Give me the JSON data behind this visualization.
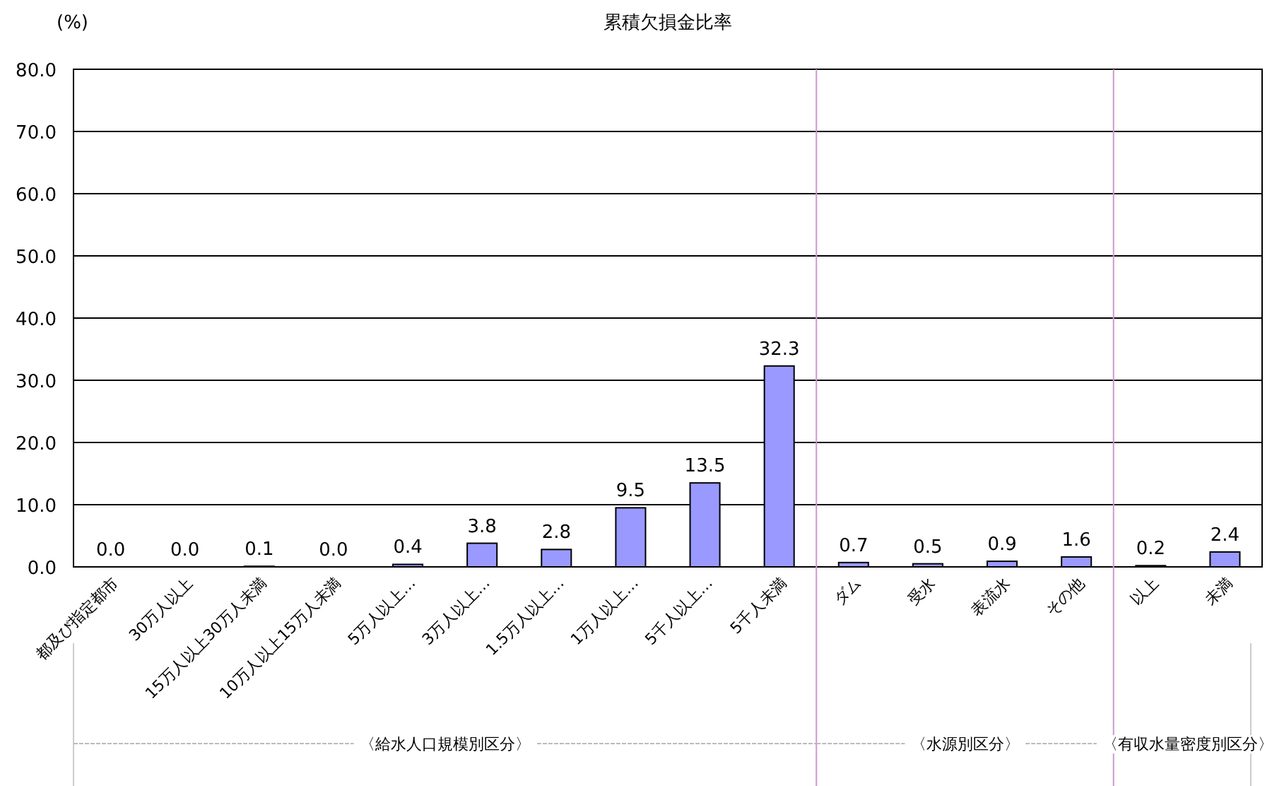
{
  "chart_data": {
    "type": "bar",
    "title": "累積欠損金比率",
    "ylabel": "(%)",
    "categories": [
      "都及び指定都市",
      "30万人以上",
      "15万人以上30万人未満",
      "10万人以上15万人未満",
      "5万人以上…",
      "3万人以上…",
      "1.5万人以上…",
      "1万人以上…",
      "5千人以上…",
      "5千人未満",
      "ダム",
      "受水",
      "表流水",
      "その他",
      "以上",
      "未満"
    ],
    "values": [
      0.0,
      0.0,
      0.1,
      0.0,
      0.4,
      3.8,
      2.8,
      9.5,
      13.5,
      32.3,
      0.7,
      0.5,
      0.9,
      1.6,
      0.2,
      2.4
    ],
    "value_labels": [
      "0.0",
      "0.0",
      "0.1",
      "0.0",
      "0.4",
      "3.8",
      "2.8",
      "9.5",
      "13.5",
      "32.3",
      "0.7",
      "0.5",
      "0.9",
      "1.6",
      "0.2",
      "2.4"
    ],
    "color": "#9999ff",
    "ylim": [
      0,
      80
    ],
    "yticks": [
      {
        "value": 0,
        "label": "0.0"
      },
      {
        "value": 10,
        "label": "10.0"
      },
      {
        "value": 20,
        "label": "20.0"
      },
      {
        "value": 30,
        "label": "30.0"
      },
      {
        "value": 40,
        "label": "40.0"
      },
      {
        "value": 50,
        "label": "50.0"
      },
      {
        "value": 60,
        "label": "60.0"
      },
      {
        "value": 70,
        "label": "70.0"
      },
      {
        "value": 80,
        "label": "80.0"
      }
    ],
    "grid": "y",
    "annotations": [
      "〈給水人口規模別区分〉",
      "〈水源別区分〉",
      "〈有収水量密度別区分〉"
    ]
  }
}
